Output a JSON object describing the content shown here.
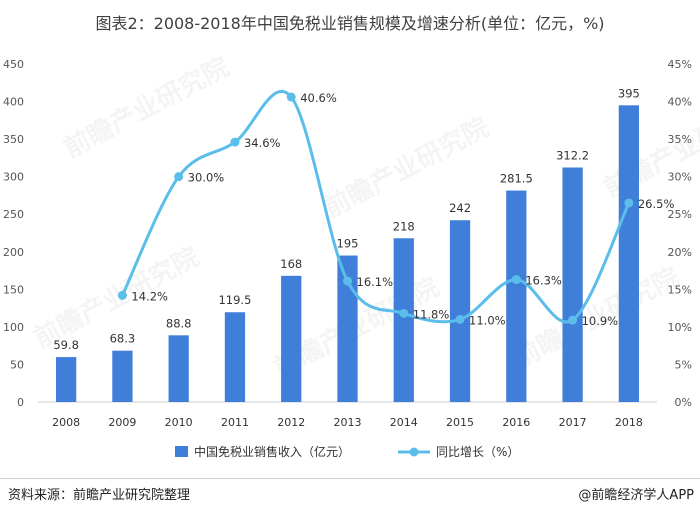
{
  "page": {
    "title": "图表2：2008-2018年中国免税业销售规模及增速分析(单位：亿元，%)",
    "source": "资料来源：前瞻产业研究院整理",
    "brand": "@前瞻经济学人APP",
    "watermark": "前瞻产业研究院"
  },
  "chart_data": {
    "type": "bar",
    "categories": [
      "2008",
      "2009",
      "2010",
      "2011",
      "2012",
      "2013",
      "2014",
      "2015",
      "2016",
      "2017",
      "2018"
    ],
    "series": [
      {
        "name": "中国免税业销售收入（亿元）",
        "type": "bar",
        "axis": "left",
        "values": [
          59.8,
          68.3,
          88.8,
          119.5,
          168,
          195,
          218,
          242,
          281.5,
          312.2,
          395
        ],
        "labels": [
          "59.8",
          "68.3",
          "88.8",
          "119.5",
          "168",
          "195",
          "218",
          "242",
          "281.5",
          "312.2",
          "395"
        ]
      },
      {
        "name": "同比增长（%）",
        "type": "line",
        "axis": "right",
        "values": [
          null,
          14.2,
          30.0,
          34.6,
          40.6,
          16.1,
          11.8,
          11.0,
          16.3,
          10.9,
          26.5
        ],
        "labels": [
          null,
          "14.2%",
          "30.0%",
          "34.6%",
          "40.6%",
          "16.1%",
          "11.8%",
          "11.0%",
          "16.3%",
          "10.9%",
          "26.5%"
        ]
      }
    ],
    "y_left": {
      "ylim": [
        0,
        450
      ],
      "ticks": [
        "0",
        "50",
        "100",
        "150",
        "200",
        "250",
        "300",
        "350",
        "400",
        "450"
      ]
    },
    "y_right": {
      "ylim": [
        0,
        45
      ],
      "ticks": [
        "0%",
        "5%",
        "10%",
        "15%",
        "20%",
        "25%",
        "30%",
        "35%",
        "40%",
        "45%"
      ]
    },
    "grid": false,
    "legend_position": "bottom",
    "colors": {
      "bar": "#3f7fd9",
      "line": "#5bbdea"
    }
  }
}
